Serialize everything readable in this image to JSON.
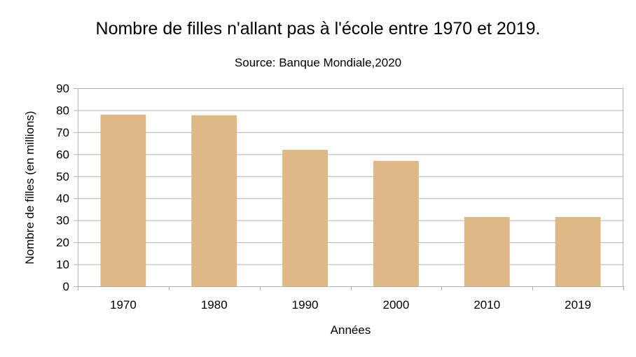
{
  "chart_data": {
    "type": "bar",
    "title": "Nombre de filles n'allant pas à l'école entre 1970 et 2019.",
    "subtitle": "Source: Banque Mondiale,2020",
    "xlabel": "Années",
    "ylabel": "Nombre de filles (en millions)",
    "categories": [
      "1970",
      "1980",
      "1990",
      "2000",
      "2010",
      "2019"
    ],
    "values": [
      78,
      77.7,
      62,
      57,
      31.5,
      31.5
    ],
    "ylim": [
      0,
      90
    ],
    "yticks": [
      0,
      10,
      20,
      30,
      40,
      50,
      60,
      70,
      80,
      90
    ],
    "grid": true,
    "legend": "none",
    "colors": {
      "bar": "#deb887",
      "grid": "#b3b3b3",
      "axis": "#b3b3b3"
    }
  }
}
